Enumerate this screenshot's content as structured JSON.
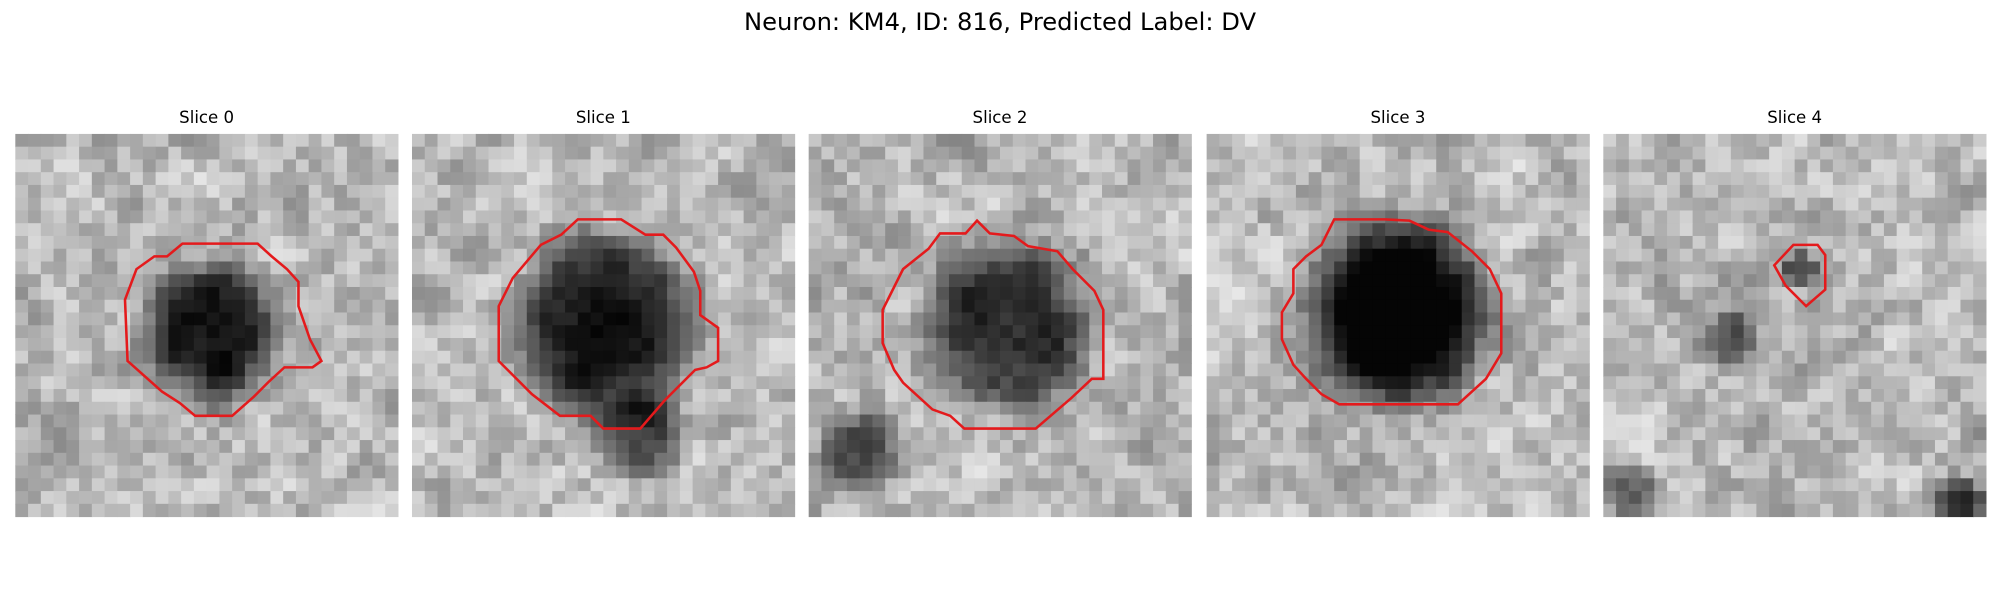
{
  "title": "Neuron: KM4, ID: 816, Predicted Label: DV",
  "panels": [
    {
      "title": "Slice 0"
    },
    {
      "title": "Slice 1"
    },
    {
      "title": "Slice 2"
    },
    {
      "title": "Slice 3"
    },
    {
      "title": "Slice 4"
    }
  ]
}
